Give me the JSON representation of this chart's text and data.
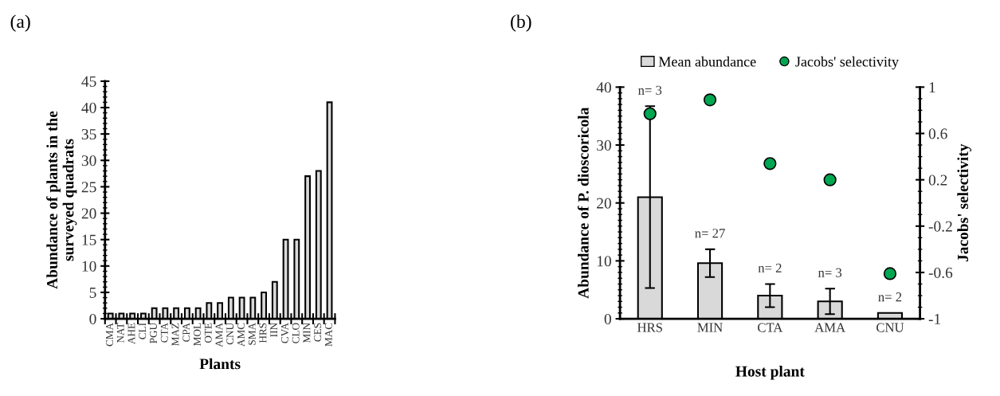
{
  "chart_data": [
    {
      "type": "bar",
      "title": "(a)",
      "xlabel": "Plants",
      "ylabel": "Abundance of plants in the\nsurveyed quadrats",
      "categories": [
        "CMA",
        "NAT",
        "AHE",
        "CLI",
        "PGU",
        "CTA",
        "MAZ",
        "CPA",
        "MOL",
        "OTE",
        "AMA",
        "CNU",
        "AMC",
        "SMA",
        "HRS",
        "IIN",
        "CVA",
        "CLO",
        "MIN",
        "CES",
        "MAC"
      ],
      "values": [
        1,
        1,
        1,
        1,
        2,
        2,
        2,
        2,
        2,
        3,
        3,
        4,
        4,
        4,
        5,
        7,
        15,
        15,
        27,
        28,
        41
      ],
      "color": "#d9d9d9",
      "ylim": [
        0,
        45
      ],
      "yticks": [
        0,
        5,
        10,
        15,
        20,
        25,
        30,
        35,
        40,
        45
      ],
      "grid": false,
      "legend": false
    },
    {
      "type": "bar",
      "title": "(b)",
      "xlabel": "Host plant",
      "ylabel": "Abundance of P. dioscoricola",
      "y2label": "Jacobs' selectivity",
      "categories": [
        "HRS",
        "MIN",
        "CTA",
        "AMA",
        "CNU"
      ],
      "series": [
        {
          "name": "Mean abundance",
          "type": "bar",
          "color": "#d9d9d9",
          "values": [
            21,
            9.6,
            4,
            3,
            1
          ],
          "errors": [
            15.7,
            2.4,
            2,
            2.2,
            null
          ]
        },
        {
          "name": "Jacobs' selectivity",
          "type": "scatter",
          "axis": "y2",
          "color": "#00a651",
          "marker": "circle",
          "values": [
            0.77,
            0.89,
            0.34,
            0.2,
            -0.61
          ]
        }
      ],
      "ylim": [
        0,
        40
      ],
      "yticks": [
        0,
        10,
        20,
        30,
        40
      ],
      "y2lim": [
        -1,
        1
      ],
      "y2ticks": [
        -1,
        -0.6,
        -0.2,
        0.2,
        0.6,
        1
      ],
      "annotations": [
        "n= 3",
        "n= 27",
        "n= 2",
        "n= 3",
        "n= 2"
      ],
      "grid": false,
      "legend": "top"
    }
  ]
}
